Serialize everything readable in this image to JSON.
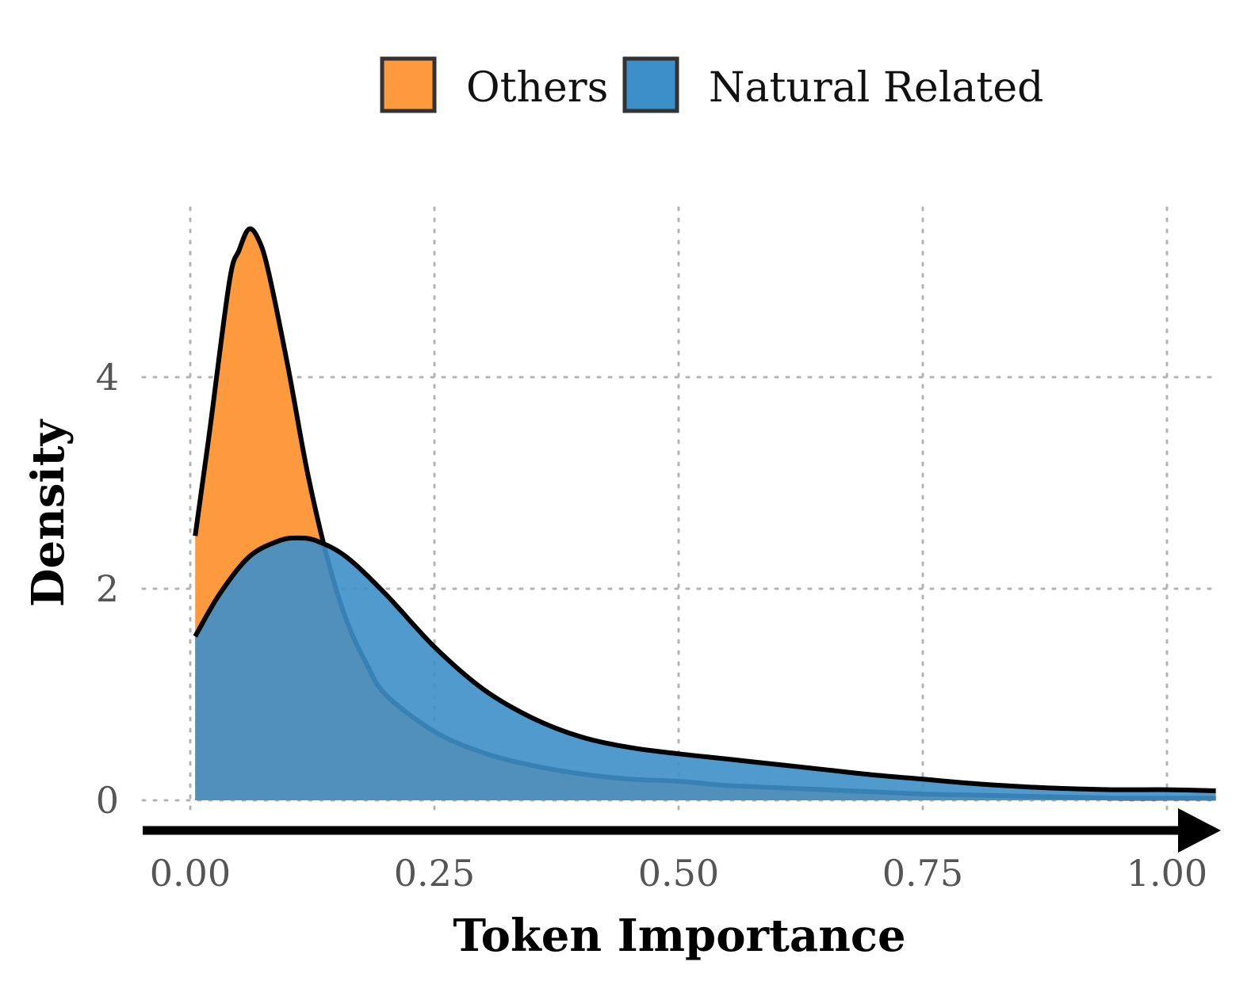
{
  "chart_data": {
    "type": "area",
    "xlabel": "Token Importance",
    "ylabel": "Density",
    "xlim": [
      -0.05,
      1.05
    ],
    "ylim": [
      -0.25,
      5.5
    ],
    "x_ticks": [
      "0.00",
      "0.25",
      "0.50",
      "0.75",
      "1.00"
    ],
    "x_tick_values": [
      0,
      0.25,
      0.5,
      0.75,
      1.0
    ],
    "y_ticks": [
      "0",
      "2",
      "4"
    ],
    "y_tick_values": [
      0,
      2,
      4
    ],
    "grid": true,
    "legend_position": "top",
    "series": [
      {
        "name": "Others",
        "color": "#fd9a3e",
        "x": [
          0.005,
          0.02,
          0.04,
          0.05,
          0.06,
          0.07,
          0.08,
          0.1,
          0.12,
          0.14,
          0.16,
          0.18,
          0.2,
          0.25,
          0.3,
          0.35,
          0.4,
          0.45,
          0.5,
          0.55,
          0.6,
          0.65,
          0.7,
          0.75,
          0.8,
          0.85,
          0.9,
          0.95,
          1.0,
          1.05
        ],
        "values": [
          2.5,
          3.5,
          4.9,
          5.2,
          5.4,
          5.3,
          5.0,
          4.1,
          3.1,
          2.3,
          1.7,
          1.3,
          1.0,
          0.65,
          0.45,
          0.33,
          0.25,
          0.2,
          0.18,
          0.14,
          0.12,
          0.1,
          0.08,
          0.06,
          0.05,
          0.04,
          0.03,
          0.02,
          0.02,
          0.02
        ]
      },
      {
        "name": "Natural Related",
        "color": "#3d8fc8",
        "x": [
          0.005,
          0.03,
          0.06,
          0.09,
          0.11,
          0.13,
          0.16,
          0.2,
          0.25,
          0.3,
          0.35,
          0.4,
          0.45,
          0.5,
          0.55,
          0.6,
          0.65,
          0.7,
          0.75,
          0.8,
          0.85,
          0.9,
          0.95,
          1.0,
          1.05
        ],
        "values": [
          1.55,
          1.95,
          2.3,
          2.45,
          2.48,
          2.45,
          2.3,
          1.95,
          1.45,
          1.05,
          0.78,
          0.6,
          0.5,
          0.44,
          0.39,
          0.34,
          0.29,
          0.24,
          0.2,
          0.16,
          0.13,
          0.11,
          0.1,
          0.1,
          0.09
        ]
      }
    ]
  }
}
